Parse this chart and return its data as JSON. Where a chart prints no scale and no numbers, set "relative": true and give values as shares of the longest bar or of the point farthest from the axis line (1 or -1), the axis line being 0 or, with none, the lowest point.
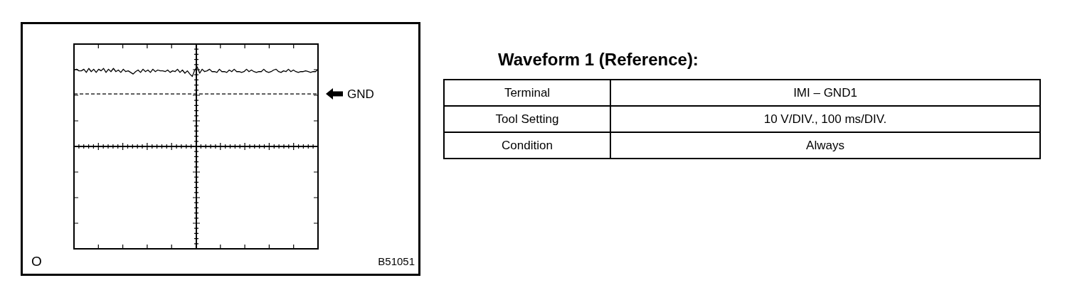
{
  "chart_data": [
    {
      "type": "line",
      "categories": [
        null,
        null,
        null,
        null,
        null,
        null,
        null,
        null,
        null,
        null,
        null,
        null,
        null,
        null,
        null,
        null,
        null,
        null,
        null,
        null,
        null,
        null,
        null,
        null,
        null,
        null,
        null,
        null,
        null,
        null,
        null,
        null,
        null,
        null,
        null,
        null,
        null,
        null,
        null,
        null,
        null,
        null,
        null,
        null,
        null,
        null,
        null,
        null,
        null,
        null,
        null,
        null,
        null,
        null,
        null,
        null,
        null,
        null,
        null,
        null,
        null,
        null,
        null,
        null,
        null,
        null,
        null,
        null,
        null,
        null,
        null,
        null,
        null,
        null,
        null,
        null,
        null,
        null,
        null,
        null,
        null,
        null,
        null,
        null,
        null,
        null,
        null,
        null,
        null,
        null,
        null,
        null,
        null,
        null,
        null,
        null,
        null,
        null,
        null,
        null
      ],
      "series": [
        {
          "color": "#000000",
          "values": [
            0.96,
            0.97,
            0.95,
            0.95,
            0.97,
            0.93,
            0.98,
            0.94,
            0.97,
            0.93,
            0.97,
            0.95,
            0.98,
            0.93,
            0.97,
            0.94,
            0.98,
            0.94,
            0.96,
            0.93,
            0.97,
            0.94,
            0.95,
            0.93,
            0.91,
            0.94,
            0.96,
            0.93,
            0.97,
            0.94,
            0.96,
            0.93,
            0.97,
            0.94,
            0.96,
            0.95,
            0.95,
            0.94,
            0.96,
            0.93,
            0.95,
            0.94,
            0.97,
            0.93,
            0.96,
            0.92,
            0.95,
            0.91,
            0.88,
            0.96,
            1.0,
            0.92,
            0.97,
            0.94,
            0.95,
            0.97,
            0.94,
            0.94,
            0.93,
            0.97,
            0.94,
            0.94,
            0.93,
            0.96,
            0.94,
            0.97,
            0.94,
            0.94,
            0.93,
            0.94,
            0.97,
            0.94,
            0.96,
            0.94,
            0.93,
            0.94,
            0.94,
            0.97,
            0.94,
            0.93,
            0.94,
            0.96,
            0.97,
            0.94,
            0.93,
            0.95,
            0.94,
            0.97,
            0.94,
            0.96,
            0.94,
            0.93,
            0.94,
            0.94,
            0.95,
            0.94,
            0.93,
            0.94,
            0.94,
            0.97
          ]
        }
      ],
      "relative": true,
      "marker": "none",
      "ref_lines": [
        {
          "axis": "y",
          "value": 0.66,
          "label": "GND",
          "line_style": "dashed"
        }
      ],
      "annotations": [
        "O",
        "B51051"
      ]
    },
    {
      "type": "other",
      "title": "Waveform 1 (Reference):",
      "annotations": [
        "Terminal",
        "IMI – GND1",
        "Tool Setting",
        "10 V/DIV., 100 ms/DIV.",
        "Condition",
        "Always"
      ]
    }
  ]
}
